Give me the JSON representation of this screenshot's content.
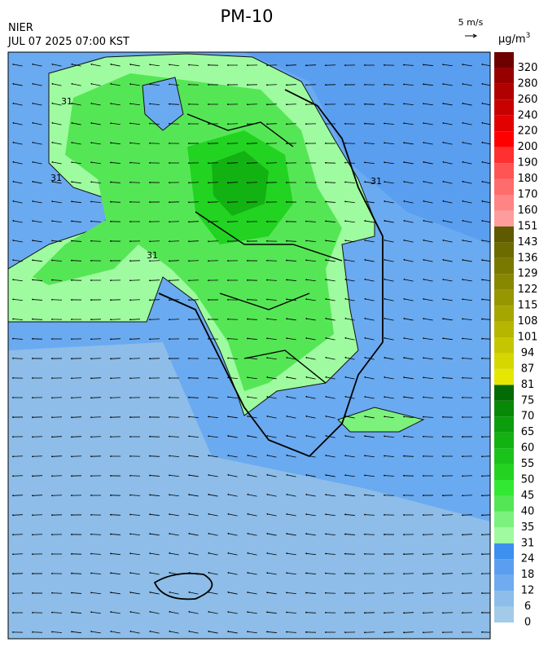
{
  "header": {
    "title": "PM-10",
    "agency": "NIER",
    "datetime": "JUL 07 2025 07:00 KST",
    "wind_scale": "5 m/s",
    "unit": "µg/m",
    "unit_power": "3"
  },
  "map": {
    "contour_labels": [
      "31",
      "31",
      "31",
      "31"
    ]
  },
  "colorbar": {
    "ticks": [
      0,
      6,
      12,
      18,
      24,
      31,
      35,
      40,
      45,
      50,
      55,
      60,
      65,
      70,
      75,
      81,
      87,
      94,
      101,
      108,
      115,
      122,
      129,
      136,
      143,
      151,
      160,
      170,
      180,
      190,
      200,
      220,
      240,
      260,
      280,
      320
    ],
    "colors": [
      "#a3cbe9",
      "#8dbde8",
      "#6fabee",
      "#5a9eef",
      "#3d8ff0",
      "#9ffb9f",
      "#7cf17c",
      "#55e655",
      "#33e833",
      "#22d322",
      "#1ac31a",
      "#12b212",
      "#0b9d0b",
      "#078907",
      "#036b03",
      "#e6e600",
      "#d6d600",
      "#c6c600",
      "#b6b600",
      "#a6a600",
      "#969600",
      "#878700",
      "#797900",
      "#6b6b00",
      "#5d5a00",
      "#ff9c9c",
      "#ff8484",
      "#ff6c6c",
      "#ff5454",
      "#ff3030",
      "#ff0000",
      "#e20000",
      "#c90000",
      "#b10000",
      "#980000",
      "#6e0000"
    ]
  }
}
